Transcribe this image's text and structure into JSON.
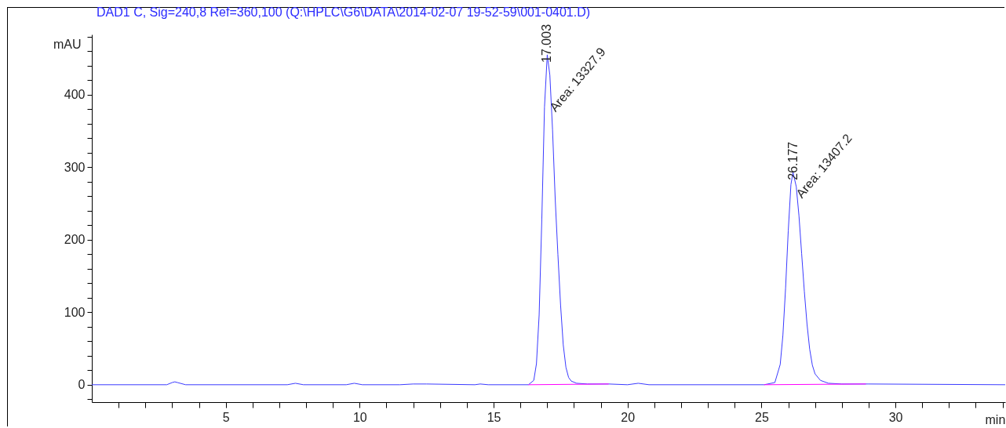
{
  "chart_data": {
    "type": "line",
    "title": "DAD1 C, Sig=240,8 Ref=360,100 (Q:\\HPLC\\G6\\DATA\\2014-02-07 19-52-59\\001-0401.D)",
    "xlabel": "min",
    "ylabel": "mAU",
    "xlim": [
      0,
      34.1
    ],
    "ylim": [
      -24,
      483
    ],
    "xticks": [
      {
        "value": 1,
        "label": null
      },
      {
        "value": 2,
        "label": null
      },
      {
        "value": 3,
        "label": null
      },
      {
        "value": 4,
        "label": null
      },
      5,
      {
        "value": 6,
        "label": null
      },
      {
        "value": 7,
        "label": null
      },
      {
        "value": 8,
        "label": null
      },
      {
        "value": 9,
        "label": null
      },
      10,
      {
        "value": 11,
        "label": null
      },
      {
        "value": 12,
        "label": null
      },
      {
        "value": 13,
        "label": null
      },
      {
        "value": 14,
        "label": null
      },
      15,
      {
        "value": 16,
        "label": null
      },
      {
        "value": 17,
        "label": null
      },
      {
        "value": 18,
        "label": null
      },
      {
        "value": 19,
        "label": null
      },
      20,
      {
        "value": 21,
        "label": null
      },
      {
        "value": 22,
        "label": null
      },
      {
        "value": 23,
        "label": null
      },
      {
        "value": 24,
        "label": null
      },
      25,
      {
        "value": 26,
        "label": null
      },
      {
        "value": 27,
        "label": null
      },
      {
        "value": 28,
        "label": null
      },
      {
        "value": 29,
        "label": null
      },
      30,
      {
        "value": 31,
        "label": null
      },
      {
        "value": 32,
        "label": null
      },
      {
        "value": 33,
        "label": null
      },
      {
        "value": 34,
        "label": null
      }
    ],
    "yticks": [
      {
        "value": -20,
        "label": null
      },
      0,
      {
        "value": 20,
        "label": null
      },
      {
        "value": 40,
        "label": null
      },
      {
        "value": 60,
        "label": null
      },
      {
        "value": 80,
        "label": null
      },
      100,
      {
        "value": 120,
        "label": null
      },
      {
        "value": 140,
        "label": null
      },
      {
        "value": 160,
        "label": null
      },
      {
        "value": 180,
        "label": null
      },
      200,
      {
        "value": 220,
        "label": null
      },
      {
        "value": 240,
        "label": null
      },
      {
        "value": 260,
        "label": null
      },
      {
        "value": 280,
        "label": null
      },
      300,
      {
        "value": 320,
        "label": null
      },
      {
        "value": 340,
        "label": null
      },
      {
        "value": 360,
        "label": null
      },
      {
        "value": 380,
        "label": null
      },
      400,
      {
        "value": 420,
        "label": null
      },
      {
        "value": 440,
        "label": null
      },
      {
        "value": 460,
        "label": null
      },
      {
        "value": 480,
        "label": null
      }
    ],
    "series": [
      {
        "color": "#3b3bff",
        "x": [
          0,
          2.8,
          3.0,
          3.1,
          3.2,
          3.5,
          7.3,
          7.6,
          7.9,
          9.5,
          9.8,
          10.1,
          11.5,
          12.0,
          12.5,
          14.3,
          14.5,
          14.8,
          16.3,
          16.5,
          16.6,
          16.7,
          16.8,
          16.9,
          17.003,
          17.1,
          17.2,
          17.3,
          17.4,
          17.5,
          17.6,
          17.7,
          17.8,
          17.9,
          18.1,
          18.5,
          19.3,
          20.0,
          20.4,
          20.8,
          25.1,
          25.5,
          25.7,
          25.8,
          25.9,
          26.0,
          26.1,
          26.177,
          26.3,
          26.4,
          26.5,
          26.6,
          26.7,
          26.8,
          26.9,
          27.0,
          27.2,
          27.5,
          28.0,
          29.0,
          34.1
        ],
        "values": [
          0,
          0,
          3,
          4,
          3,
          0,
          0,
          2,
          0,
          0,
          2,
          0,
          0,
          1,
          1,
          0,
          1,
          0,
          0,
          6,
          29,
          96,
          228,
          383,
          455,
          427,
          352,
          256,
          180,
          110,
          55,
          24,
          10,
          5,
          2,
          1,
          1,
          0,
          2,
          0,
          0,
          3,
          28,
          68,
          133,
          212,
          276,
          293,
          273,
          233,
          181,
          129,
          84,
          49,
          27,
          15,
          6,
          2,
          1,
          1,
          0
        ]
      },
      {
        "color": "#ff00ff",
        "x": [
          16.3,
          19.3
        ],
        "values": [
          0,
          1
        ]
      },
      {
        "color": "#ff00ff",
        "x": [
          25.1,
          28.9
        ],
        "values": [
          0,
          1
        ]
      }
    ],
    "annotations": [
      {
        "text": "17.003",
        "x": 17.003,
        "y": 455
      },
      {
        "text": "Area: 13327.9",
        "x": 17.2,
        "y": 352
      },
      {
        "text": "26.177",
        "x": 26.177,
        "y": 293
      },
      {
        "text": "Area: 13407.2",
        "x": 26.4,
        "y": 233
      }
    ]
  }
}
